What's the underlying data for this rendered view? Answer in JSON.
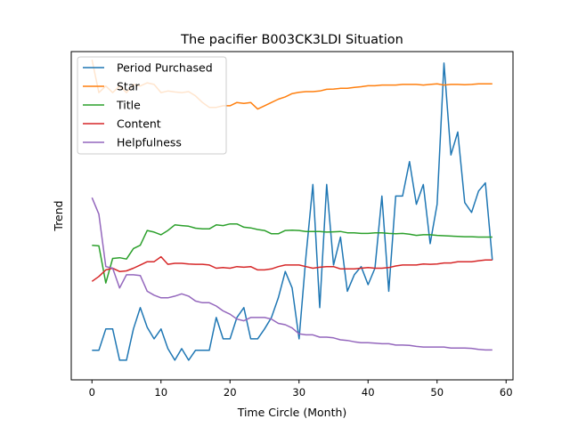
{
  "chart_data": {
    "type": "line",
    "title": "The pacifier B003CK3LDI Situation",
    "xlabel": "Time Circle (Month)",
    "ylabel": "Trend",
    "xlim": [
      -3,
      61
    ],
    "ylim": [
      0.0,
      1.0
    ],
    "xticks": [
      0,
      10,
      20,
      30,
      40,
      50,
      60
    ],
    "yticks_shown": false,
    "grid": false,
    "legend_position": "top-left",
    "x": [
      0,
      1,
      2,
      3,
      4,
      5,
      6,
      7,
      8,
      9,
      10,
      11,
      12,
      13,
      14,
      15,
      16,
      17,
      18,
      19,
      20,
      21,
      22,
      23,
      24,
      25,
      26,
      27,
      28,
      29,
      30,
      31,
      32,
      33,
      34,
      35,
      36,
      37,
      38,
      39,
      40,
      41,
      42,
      43,
      44,
      45,
      46,
      47,
      48,
      49,
      50,
      51,
      52,
      53,
      54,
      55,
      56,
      57,
      58
    ],
    "series": [
      {
        "name": "Period Purchased",
        "color": "#1f77b4",
        "values": [
          0.09,
          0.09,
          0.155,
          0.155,
          0.06,
          0.06,
          0.155,
          0.22,
          0.16,
          0.125,
          0.155,
          0.095,
          0.06,
          0.095,
          0.06,
          0.09,
          0.09,
          0.09,
          0.19,
          0.125,
          0.125,
          0.19,
          0.22,
          0.125,
          0.125,
          0.155,
          0.19,
          0.25,
          0.33,
          0.28,
          0.125,
          0.375,
          0.595,
          0.22,
          0.595,
          0.35,
          0.435,
          0.27,
          0.32,
          0.345,
          0.29,
          0.34,
          0.56,
          0.27,
          0.56,
          0.56,
          0.665,
          0.535,
          0.595,
          0.415,
          0.535,
          0.965,
          0.685,
          0.755,
          0.54,
          0.51,
          0.575,
          0.6,
          0.365
        ]
      },
      {
        "name": "Star",
        "color": "#ff7f0e",
        "values": [
          0.975,
          0.875,
          0.895,
          0.875,
          0.895,
          0.875,
          0.9,
          0.895,
          0.905,
          0.9,
          0.875,
          0.88,
          0.877,
          0.875,
          0.878,
          0.865,
          0.845,
          0.83,
          0.83,
          0.835,
          0.835,
          0.845,
          0.842,
          0.845,
          0.825,
          0.835,
          0.845,
          0.855,
          0.862,
          0.872,
          0.876,
          0.878,
          0.878,
          0.88,
          0.885,
          0.886,
          0.888,
          0.888,
          0.891,
          0.893,
          0.896,
          0.896,
          0.898,
          0.898,
          0.898,
          0.9,
          0.9,
          0.9,
          0.898,
          0.9,
          0.902,
          0.898,
          0.9,
          0.9,
          0.899,
          0.9,
          0.902,
          0.902,
          0.902
        ]
      },
      {
        "name": "Title",
        "color": "#2ca02c",
        "values": [
          0.41,
          0.408,
          0.295,
          0.37,
          0.372,
          0.368,
          0.4,
          0.41,
          0.455,
          0.45,
          0.442,
          0.455,
          0.472,
          0.47,
          0.468,
          0.462,
          0.46,
          0.46,
          0.472,
          0.47,
          0.475,
          0.475,
          0.465,
          0.463,
          0.458,
          0.455,
          0.445,
          0.445,
          0.455,
          0.456,
          0.455,
          0.452,
          0.452,
          0.452,
          0.45,
          0.451,
          0.452,
          0.448,
          0.448,
          0.446,
          0.446,
          0.448,
          0.448,
          0.446,
          0.445,
          0.446,
          0.444,
          0.44,
          0.442,
          0.442,
          0.44,
          0.439,
          0.438,
          0.437,
          0.436,
          0.436,
          0.435,
          0.435,
          0.435
        ]
      },
      {
        "name": "Content",
        "color": "#d62728",
        "values": [
          0.3,
          0.315,
          0.335,
          0.34,
          0.33,
          0.332,
          0.34,
          0.35,
          0.36,
          0.36,
          0.375,
          0.352,
          0.355,
          0.355,
          0.353,
          0.352,
          0.352,
          0.35,
          0.34,
          0.342,
          0.34,
          0.345,
          0.343,
          0.345,
          0.335,
          0.335,
          0.338,
          0.345,
          0.35,
          0.35,
          0.35,
          0.345,
          0.34,
          0.343,
          0.345,
          0.345,
          0.338,
          0.338,
          0.338,
          0.34,
          0.342,
          0.34,
          0.34,
          0.342,
          0.347,
          0.35,
          0.35,
          0.35,
          0.353,
          0.352,
          0.353,
          0.356,
          0.356,
          0.36,
          0.36,
          0.36,
          0.363,
          0.365,
          0.365
        ]
      },
      {
        "name": "Helpfulness",
        "color": "#9467bd",
        "values": [
          0.555,
          0.505,
          0.345,
          0.34,
          0.28,
          0.32,
          0.32,
          0.318,
          0.27,
          0.258,
          0.25,
          0.25,
          0.255,
          0.262,
          0.255,
          0.24,
          0.235,
          0.235,
          0.225,
          0.21,
          0.2,
          0.185,
          0.18,
          0.19,
          0.19,
          0.19,
          0.185,
          0.172,
          0.168,
          0.158,
          0.14,
          0.137,
          0.137,
          0.13,
          0.13,
          0.128,
          0.122,
          0.12,
          0.116,
          0.113,
          0.113,
          0.112,
          0.11,
          0.11,
          0.106,
          0.106,
          0.105,
          0.102,
          0.1,
          0.1,
          0.1,
          0.1,
          0.097,
          0.097,
          0.097,
          0.096,
          0.093,
          0.091,
          0.091
        ]
      }
    ]
  }
}
